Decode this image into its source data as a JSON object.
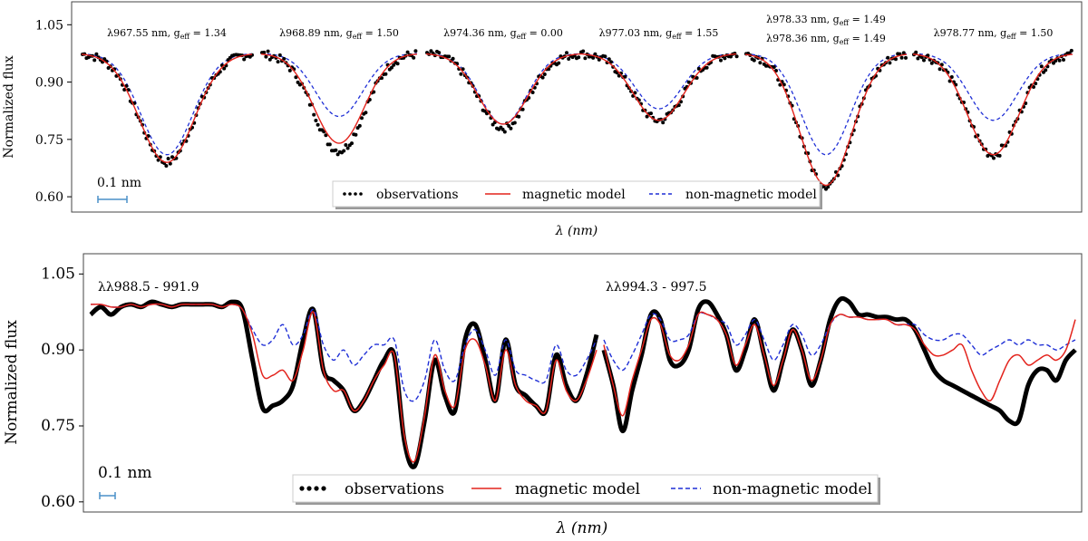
{
  "chart_data": [
    {
      "type": "line",
      "panel": "top",
      "ylabel": "Normalized flux",
      "xlabel": "λ (nm)",
      "yticks": [
        "1.05",
        "0.90",
        "0.75",
        "0.60"
      ],
      "ytick_values": [
        1.05,
        0.9,
        0.75,
        0.6
      ],
      "ylim": [
        0.56,
        1.11
      ],
      "scale_bar": "0.1 nm",
      "legend": [
        "observations",
        "magnetic model",
        "non-magnetic model"
      ],
      "series_colors": {
        "observations": "#000000",
        "magnetic": "#e3231c",
        "nonmagnetic": "#1f2fd6",
        "scalebar": "#4a90c8"
      },
      "lines": [
        {
          "label": "λ967.55 nm, g",
          "sub": "eff",
          "value": " = 1.34",
          "mag_min": 0.69,
          "nonmag_min": 0.71,
          "obs_min": 0.69
        },
        {
          "label": "λ968.89 nm, g",
          "sub": "eff",
          "value": " = 1.50",
          "mag_min": 0.74,
          "nonmag_min": 0.81,
          "obs_min": 0.72
        },
        {
          "label": "λ974.36 nm, g",
          "sub": "eff",
          "value": " = 0.00",
          "mag_min": 0.79,
          "nonmag_min": 0.79,
          "obs_min": 0.78
        },
        {
          "label": "λ977.03 nm, g",
          "sub": "eff",
          "value": " = 1.55",
          "mag_min": 0.8,
          "nonmag_min": 0.83,
          "obs_min": 0.8
        },
        {
          "label": "λ978.33 nm, g",
          "sub": "eff",
          "value": " = 1.49",
          "label2": "λ978.36 nm, g",
          "sub2": "eff",
          "value2": " = 1.49",
          "mag_min": 0.63,
          "nonmag_min": 0.71,
          "obs_min": 0.63
        },
        {
          "label": "λ978.77 nm, g",
          "sub": "eff",
          "value": " = 1.50",
          "mag_min": 0.71,
          "nonmag_min": 0.8,
          "obs_min": 0.71
        }
      ]
    },
    {
      "type": "line",
      "panel": "bottom",
      "ylabel": "Normalized flux",
      "xlabel": "λ (nm)",
      "yticks": [
        "1.05",
        "0.90",
        "0.75",
        "0.60"
      ],
      "ytick_values": [
        1.05,
        0.9,
        0.75,
        0.6
      ],
      "ylim": [
        0.58,
        1.09
      ],
      "scale_bar": "0.1 nm",
      "legend": [
        "observations",
        "magnetic model",
        "non-magnetic model"
      ],
      "ranges": [
        "λλ988.5 - 991.9",
        "λλ994.3 - 997.5"
      ],
      "segment1": {
        "x": [
          0,
          2,
          4,
          6,
          8,
          10,
          12,
          14,
          16,
          18,
          20,
          22,
          24,
          26,
          28,
          30,
          32,
          34,
          36,
          38,
          40,
          42,
          44,
          46,
          48,
          50,
          52,
          54,
          56,
          58,
          60,
          62,
          64,
          66,
          68,
          70,
          72,
          74,
          76,
          78,
          80,
          82,
          84,
          86,
          88,
          90,
          92,
          94,
          96,
          98,
          100
        ],
        "obs": [
          0.97,
          0.985,
          0.97,
          0.985,
          0.99,
          0.985,
          0.995,
          0.99,
          0.985,
          0.99,
          0.99,
          0.99,
          0.99,
          0.985,
          0.995,
          0.98,
          0.88,
          0.785,
          0.79,
          0.8,
          0.83,
          0.92,
          0.98,
          0.86,
          0.84,
          0.82,
          0.78,
          0.8,
          0.84,
          0.88,
          0.89,
          0.72,
          0.67,
          0.76,
          0.88,
          0.81,
          0.78,
          0.92,
          0.95,
          0.88,
          0.8,
          0.92,
          0.83,
          0.81,
          0.79,
          0.78,
          0.89,
          0.83,
          0.8,
          0.85,
          0.93
        ],
        "mag": [
          0.99,
          0.99,
          0.985,
          0.985,
          0.99,
          0.985,
          0.99,
          0.99,
          0.985,
          0.99,
          0.99,
          0.99,
          0.99,
          0.985,
          0.99,
          0.98,
          0.93,
          0.85,
          0.85,
          0.86,
          0.84,
          0.9,
          0.975,
          0.86,
          0.82,
          0.82,
          0.78,
          0.8,
          0.84,
          0.87,
          0.89,
          0.73,
          0.68,
          0.77,
          0.89,
          0.82,
          0.79,
          0.9,
          0.92,
          0.87,
          0.8,
          0.9,
          0.83,
          0.8,
          0.79,
          0.78,
          0.88,
          0.82,
          0.8,
          0.84,
          0.9
        ],
        "nonmag": [
          0.99,
          0.99,
          0.985,
          0.985,
          0.99,
          0.985,
          0.99,
          0.99,
          0.985,
          0.99,
          0.99,
          0.99,
          0.99,
          0.985,
          0.99,
          0.98,
          0.94,
          0.91,
          0.92,
          0.95,
          0.91,
          0.93,
          0.98,
          0.91,
          0.88,
          0.9,
          0.87,
          0.89,
          0.91,
          0.91,
          0.92,
          0.82,
          0.8,
          0.84,
          0.92,
          0.86,
          0.84,
          0.91,
          0.94,
          0.9,
          0.85,
          0.92,
          0.86,
          0.85,
          0.84,
          0.84,
          0.91,
          0.86,
          0.85,
          0.88,
          0.92
        ]
      },
      "segment2": {
        "x": [
          0,
          2,
          4,
          6,
          8,
          10,
          12,
          14,
          16,
          18,
          20,
          22,
          24,
          26,
          28,
          30,
          32,
          34,
          36,
          38,
          40,
          42,
          44,
          46,
          48,
          50,
          52,
          54,
          56,
          58,
          60,
          62,
          64,
          66,
          68,
          70,
          72,
          74,
          76,
          78,
          80,
          82,
          84,
          86,
          88,
          90,
          92,
          94,
          96,
          98,
          100
        ],
        "obs": [
          0.9,
          0.83,
          0.74,
          0.82,
          0.89,
          0.97,
          0.96,
          0.88,
          0.87,
          0.9,
          0.98,
          0.995,
          0.97,
          0.93,
          0.86,
          0.9,
          0.96,
          0.89,
          0.82,
          0.88,
          0.94,
          0.9,
          0.83,
          0.88,
          0.96,
          0.999,
          0.995,
          0.97,
          0.97,
          0.965,
          0.965,
          0.96,
          0.96,
          0.94,
          0.9,
          0.86,
          0.84,
          0.83,
          0.82,
          0.81,
          0.8,
          0.79,
          0.78,
          0.76,
          0.76,
          0.83,
          0.86,
          0.86,
          0.84,
          0.88,
          0.9
        ],
        "mag": [
          0.91,
          0.83,
          0.77,
          0.84,
          0.9,
          0.96,
          0.95,
          0.89,
          0.88,
          0.91,
          0.97,
          0.97,
          0.96,
          0.93,
          0.87,
          0.91,
          0.95,
          0.89,
          0.83,
          0.88,
          0.94,
          0.9,
          0.84,
          0.88,
          0.95,
          0.97,
          0.965,
          0.965,
          0.96,
          0.96,
          0.96,
          0.95,
          0.95,
          0.94,
          0.91,
          0.89,
          0.89,
          0.9,
          0.91,
          0.86,
          0.82,
          0.8,
          0.84,
          0.88,
          0.89,
          0.87,
          0.88,
          0.89,
          0.88,
          0.9,
          0.96
        ],
        "nonmag": [
          0.92,
          0.88,
          0.86,
          0.89,
          0.93,
          0.97,
          0.96,
          0.92,
          0.92,
          0.93,
          0.97,
          0.97,
          0.96,
          0.95,
          0.91,
          0.93,
          0.96,
          0.92,
          0.88,
          0.91,
          0.95,
          0.93,
          0.89,
          0.91,
          0.95,
          0.97,
          0.965,
          0.965,
          0.96,
          0.96,
          0.96,
          0.95,
          0.95,
          0.95,
          0.93,
          0.92,
          0.92,
          0.93,
          0.93,
          0.91,
          0.89,
          0.9,
          0.91,
          0.92,
          0.91,
          0.92,
          0.91,
          0.91,
          0.9,
          0.91,
          0.92
        ]
      }
    }
  ]
}
